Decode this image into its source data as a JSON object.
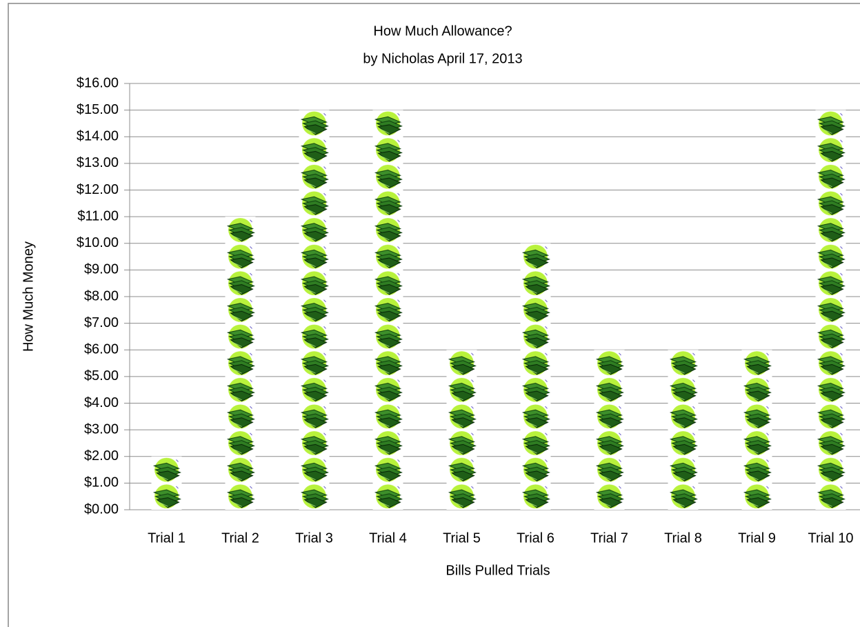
{
  "chart_data": {
    "type": "pictograph",
    "title": "How Much Allowance?",
    "subtitle": "by Nicholas April 17, 2013",
    "x_label": "Bills Pulled Trials",
    "y_label": "How Much Money",
    "categories": [
      "Trial 1",
      "Trial 2",
      "Trial 3",
      "Trial 4",
      "Trial 5",
      "Trial 6",
      "Trial 7",
      "Trial 8",
      "Trial 9",
      "Trial 10"
    ],
    "values": [
      2,
      11,
      15,
      15,
      6,
      10,
      6,
      6,
      6,
      15
    ],
    "ylim": [
      0,
      16
    ],
    "yticks": [
      {
        "value": 0,
        "label": "$0.00"
      },
      {
        "value": 1,
        "label": "$1.00"
      },
      {
        "value": 2,
        "label": "$2.00"
      },
      {
        "value": 3,
        "label": "$3.00"
      },
      {
        "value": 4,
        "label": "$4.00"
      },
      {
        "value": 5,
        "label": "$5.00"
      },
      {
        "value": 6,
        "label": "$6.00"
      },
      {
        "value": 7,
        "label": "$7.00"
      },
      {
        "value": 8,
        "label": "$8.00"
      },
      {
        "value": 9,
        "label": "$9.00"
      },
      {
        "value": 10,
        "label": "$10.00"
      },
      {
        "value": 11,
        "label": "$11.00"
      },
      {
        "value": 12,
        "label": "$12.00"
      },
      {
        "value": 13,
        "label": "$13.00"
      },
      {
        "value": 14,
        "label": "$14.00"
      },
      {
        "value": 15,
        "label": "$15.00"
      },
      {
        "value": 16,
        "label": "$16.00"
      }
    ],
    "grid": true
  }
}
